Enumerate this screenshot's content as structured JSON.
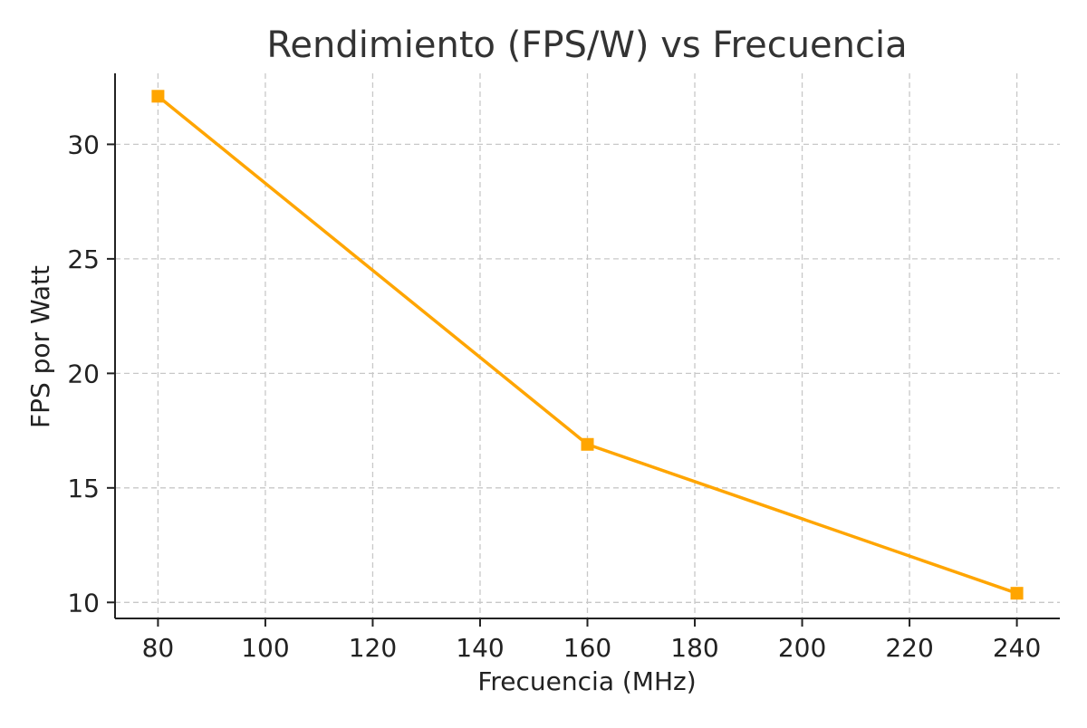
{
  "chart_data": {
    "type": "line",
    "title": "Rendimiento (FPS/W) vs Frecuencia",
    "xlabel": "Frecuencia (MHz)",
    "ylabel": "FPS por Watt",
    "x_ticks": [
      80,
      100,
      120,
      140,
      160,
      180,
      200,
      220,
      240
    ],
    "y_ticks": [
      10,
      15,
      20,
      25,
      30
    ],
    "xlim": [
      72,
      248
    ],
    "ylim": [
      9.3,
      33.1
    ],
    "grid": true,
    "series": [
      {
        "color": "#FFA500",
        "marker": "square",
        "points": [
          {
            "x": 80,
            "y": 32.1
          },
          {
            "x": 160,
            "y": 16.9
          },
          {
            "x": 240,
            "y": 10.4
          }
        ]
      }
    ]
  }
}
